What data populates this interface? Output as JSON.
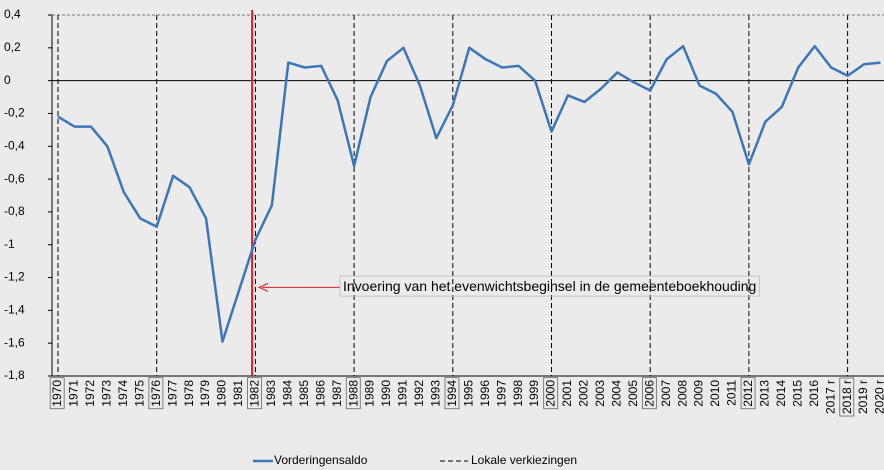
{
  "chart_data": {
    "type": "line",
    "categories": [
      "1970",
      "1971",
      "1972",
      "1973",
      "1974",
      "1975",
      "1976",
      "1977",
      "1978",
      "1979",
      "1980",
      "1981",
      "1982",
      "1983",
      "1984",
      "1985",
      "1986",
      "1987",
      "1988",
      "1989",
      "1990",
      "1991",
      "1992",
      "1993",
      "1994",
      "1995",
      "1996",
      "1997",
      "1998",
      "1999",
      "2000",
      "2001",
      "2002",
      "2003",
      "2004",
      "2005",
      "2006",
      "2007",
      "2008",
      "2009",
      "2010",
      "2011",
      "2012",
      "2013",
      "2014",
      "2015",
      "2016",
      "2017 r",
      "2018 r",
      "2019 r",
      "2020 r"
    ],
    "series": [
      {
        "name": "Vorderingensaldo",
        "color": "#3b76b9",
        "values": [
          -0.22,
          -0.28,
          -0.28,
          -0.4,
          -0.68,
          -0.84,
          -0.89,
          -0.58,
          -0.65,
          -0.84,
          -1.59,
          -1.28,
          -0.97,
          -0.76,
          0.11,
          0.08,
          0.09,
          -0.12,
          -0.52,
          -0.1,
          0.12,
          0.2,
          -0.03,
          -0.35,
          -0.15,
          0.2,
          0.13,
          0.08,
          0.09,
          0.0,
          -0.31,
          -0.09,
          -0.13,
          -0.05,
          0.05,
          -0.01,
          -0.06,
          0.13,
          0.21,
          -0.03,
          -0.08,
          -0.19,
          -0.51,
          -0.25,
          -0.16,
          0.08,
          0.21,
          0.08,
          0.03,
          0.1,
          0.11
        ]
      }
    ],
    "election_legend": "Lokale verkiezingen",
    "election_categories": [
      "1970",
      "1976",
      "1982",
      "1988",
      "1994",
      "2000",
      "2006",
      "2012",
      "2018 r"
    ],
    "annotation": "Invoering van het evenwichtsbeginsel in de gemeenteboekhouding",
    "ylim": [
      -1.8,
      0.4
    ],
    "yticks": [
      {
        "value": 0.4,
        "label": "0,4"
      },
      {
        "value": 0.2,
        "label": "0,2"
      },
      0,
      {
        "value": -0.2,
        "label": "-0,2"
      },
      {
        "value": -0.4,
        "label": "-0,4"
      },
      {
        "value": -0.6,
        "label": "-0,6"
      },
      {
        "value": -0.8,
        "label": "-0,8"
      },
      -1,
      {
        "value": -1.2,
        "label": "-1,2"
      },
      {
        "value": -1.4,
        "label": "-1,4"
      },
      {
        "value": -1.6,
        "label": "-1,6"
      },
      {
        "value": -1.8,
        "label": "-1,8"
      }
    ]
  }
}
